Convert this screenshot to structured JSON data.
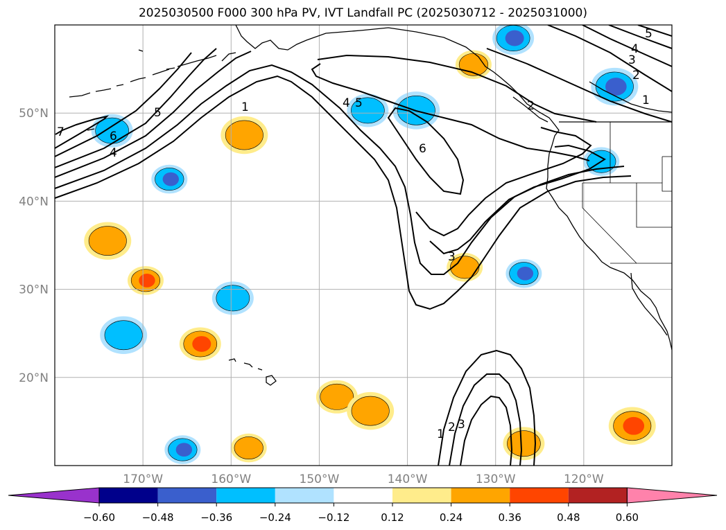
{
  "title": "2025030500 F000 300 hPa PV, IVT Landfall PC (2025030712 - 2025031000)",
  "map": {
    "lon_range": [
      -180,
      -110
    ],
    "lat_range": [
      10,
      60
    ],
    "lat_ticks": [
      {
        "lat": 50,
        "label": "50°N"
      },
      {
        "lat": 40,
        "label": "40°N"
      },
      {
        "lat": 30,
        "label": "30°N"
      },
      {
        "lat": 20,
        "label": "20°N"
      }
    ],
    "lon_ticks": [
      {
        "lon": -170,
        "label": "170°W"
      },
      {
        "lon": -160,
        "label": "160°W"
      },
      {
        "lon": -150,
        "label": "150°W"
      },
      {
        "lon": -140,
        "label": "140°W"
      },
      {
        "lon": -130,
        "label": "130°W"
      },
      {
        "lon": -120,
        "label": "120°W"
      }
    ],
    "grid": true
  },
  "colorbar": {
    "colors": [
      "#9932cc",
      "#00008b",
      "#3a5fcd",
      "#00bfff",
      "#b0e2ff",
      "#ffffff",
      "#ffec8b",
      "#ffa500",
      "#ff4500",
      "#b22222",
      "#ff82ab"
    ],
    "ticks": [
      "−0.60",
      "−0.48",
      "−0.36",
      "−0.24",
      "−0.12",
      "0.12",
      "0.24",
      "0.36",
      "0.48",
      "0.60"
    ]
  },
  "contour_labels": [
    "1",
    "2",
    "3",
    "4",
    "5",
    "6",
    "7"
  ],
  "shading_blobs": [
    {
      "lon": -167.0,
      "lat": 42.5,
      "level": -0.48
    },
    {
      "lon": -159.8,
      "lat": 29.0,
      "level": -0.36
    },
    {
      "lon": -172.2,
      "lat": 24.8,
      "level": -0.36
    },
    {
      "lon": -165.5,
      "lat": 11.8,
      "level": -0.48
    },
    {
      "lon": -144.5,
      "lat": 50.3,
      "level": -0.36
    },
    {
      "lon": -139.0,
      "lat": 50.3,
      "level": -0.24
    },
    {
      "lon": -126.8,
      "lat": 31.8,
      "level": -0.48
    },
    {
      "lon": -128.0,
      "lat": 58.5,
      "level": -0.48
    },
    {
      "lon": -116.5,
      "lat": 53.0,
      "level": -0.48
    },
    {
      "lon": -118.0,
      "lat": 44.5,
      "level": -0.36
    },
    {
      "lon": -173.5,
      "lat": 48.0,
      "level": -0.24
    },
    {
      "lon": -174.0,
      "lat": 35.5,
      "level": 0.24
    },
    {
      "lon": -169.7,
      "lat": 31.0,
      "level": 0.36
    },
    {
      "lon": -163.5,
      "lat": 23.8,
      "level": 0.36
    },
    {
      "lon": -158.5,
      "lat": 47.5,
      "level": 0.24
    },
    {
      "lon": -158.0,
      "lat": 12.0,
      "level": 0.24
    },
    {
      "lon": -148.0,
      "lat": 17.8,
      "level": 0.24
    },
    {
      "lon": -144.2,
      "lat": 16.2,
      "level": 0.24
    },
    {
      "lon": -133.5,
      "lat": 32.5,
      "level": 0.24
    },
    {
      "lon": -126.8,
      "lat": 12.5,
      "level": 0.24
    },
    {
      "lon": -114.5,
      "lat": 14.5,
      "level": 0.36
    },
    {
      "lon": -132.5,
      "lat": 55.5,
      "level": 0.24
    }
  ]
}
